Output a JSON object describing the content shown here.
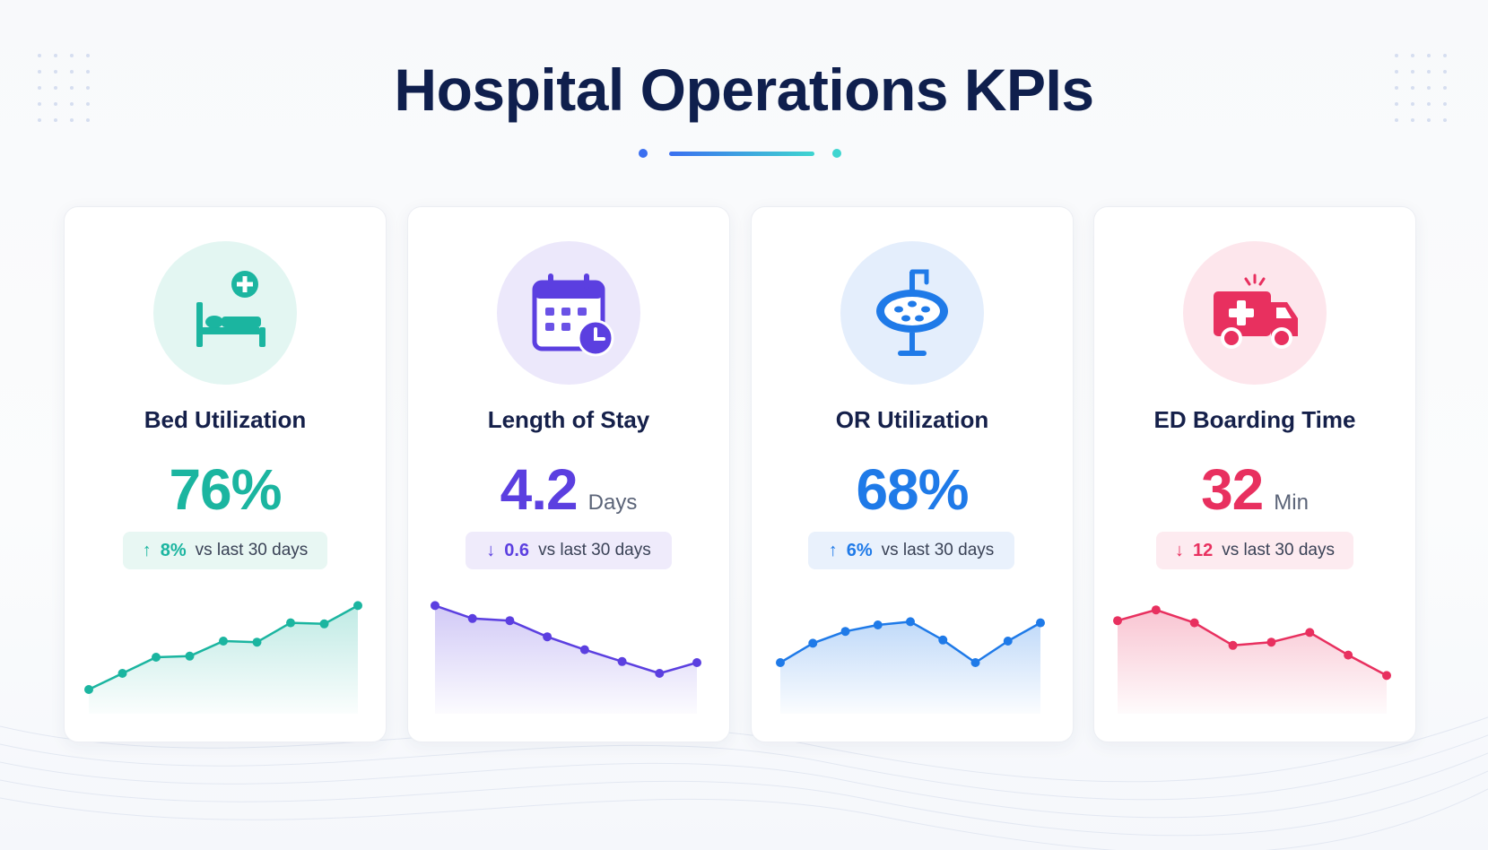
{
  "page": {
    "title": "Hospital Operations KPIs"
  },
  "kpis": [
    {
      "name": "Bed Utilization",
      "icon": "hospital-bed-icon",
      "value": "76%",
      "unit": "",
      "trend_arrow": "↑",
      "trend_direction": "up",
      "delta": "8%",
      "comparison": "vs last 30 days",
      "color": "#1bb5a0",
      "bg": "#e3f6f2",
      "pill_bg": "#e8f7f3"
    },
    {
      "name": "Length of Stay",
      "icon": "calendar-clock-icon",
      "value": "4.2",
      "unit": "Days",
      "trend_arrow": "↓",
      "trend_direction": "down",
      "delta": "0.6",
      "comparison": "vs last 30 days",
      "color": "#5b3fe0",
      "bg": "#ece8fb",
      "pill_bg": "#efebfb"
    },
    {
      "name": "OR Utilization",
      "icon": "surgical-light-icon",
      "value": "68%",
      "unit": "",
      "trend_arrow": "↑",
      "trend_direction": "up",
      "delta": "6%",
      "comparison": "vs last 30 days",
      "color": "#1f7ae8",
      "bg": "#e4eefc",
      "pill_bg": "#e9f1fc"
    },
    {
      "name": "ED Boarding Time",
      "icon": "ambulance-icon",
      "value": "32",
      "unit": "Min",
      "trend_arrow": "↓",
      "trend_direction": "down",
      "delta": "12",
      "comparison": "vs last 30 days",
      "color": "#e8305f",
      "bg": "#fde6ec",
      "pill_bg": "#fdebf0"
    }
  ],
  "chart_data": [
    {
      "type": "line",
      "title": "Bed Utilization",
      "values": [
        1.0,
        2.5,
        4.0,
        4.1,
        5.5,
        5.4,
        7.2,
        7.1,
        8.8
      ],
      "ylim": [
        0,
        10
      ]
    },
    {
      "type": "line",
      "title": "Length of Stay",
      "values": [
        8.8,
        7.6,
        7.4,
        5.9,
        4.7,
        3.6,
        2.5,
        3.5
      ],
      "ylim": [
        0,
        10
      ]
    },
    {
      "type": "line",
      "title": "OR Utilization",
      "values": [
        3.5,
        5.3,
        6.4,
        7.0,
        7.3,
        5.6,
        3.5,
        5.5,
        7.2
      ],
      "ylim": [
        0,
        10
      ]
    },
    {
      "type": "line",
      "title": "ED Boarding Time",
      "values": [
        7.4,
        8.4,
        7.2,
        5.1,
        5.4,
        6.3,
        4.2,
        2.3
      ],
      "ylim": [
        0,
        10
      ]
    }
  ]
}
